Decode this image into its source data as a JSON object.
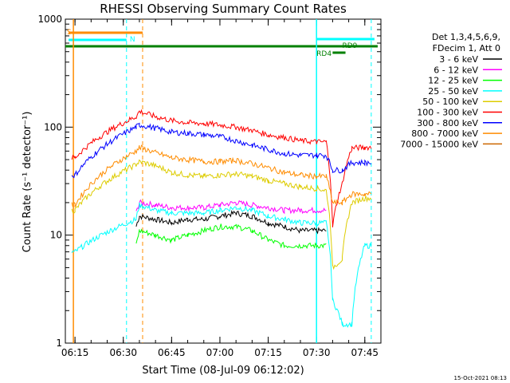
{
  "chart_data": {
    "type": "line",
    "title": "RHESSI Observing Summary Count Rates",
    "xlabel": "Start Time (08-Jul-09 06:12:02)",
    "ylabel": "Count Rate (s⁻¹ detector⁻¹)",
    "y_scale": "log",
    "ylim": [
      1,
      1000
    ],
    "xlim": [
      "06:12",
      "07:50"
    ],
    "x_ticks": [
      "06:15",
      "06:30",
      "06:45",
      "07:00",
      "07:15",
      "07:30",
      "07:45"
    ],
    "y_ticks": [
      "1",
      "10",
      "100",
      "1000"
    ],
    "legend": {
      "placement": "right",
      "header": [
        "Det 1,3,4,5,6,9,",
        "FDecim 1, Att 0"
      ]
    },
    "footer": "15-Oct-2021 08:13",
    "x_keys": [
      "06:14",
      "06:15",
      "06:34",
      "06:35",
      "06:40",
      "06:45",
      "06:50",
      "06:55",
      "07:00",
      "07:05",
      "07:10",
      "07:15",
      "07:20",
      "07:25",
      "07:30",
      "07:33",
      "07:35",
      "07:38",
      "07:41",
      "07:45",
      "07:47"
    ],
    "series": [
      {
        "name": "3 - 6 keV",
        "color": "#000000",
        "values": [
          null,
          null,
          12,
          15,
          14,
          13,
          14,
          14,
          15,
          16,
          15,
          13,
          12,
          11,
          11,
          11,
          null,
          null,
          null,
          null,
          null
        ]
      },
      {
        "name": "6 - 12 keV",
        "color": "#ff00ff",
        "values": [
          null,
          null,
          16,
          20,
          19,
          18,
          18,
          18,
          19,
          20,
          19,
          18,
          17,
          17,
          17,
          17,
          null,
          null,
          null,
          null,
          null
        ]
      },
      {
        "name": "12 - 25 keV",
        "color": "#00ff00",
        "values": [
          null,
          null,
          8,
          11,
          10,
          9,
          10,
          11,
          12,
          12,
          11,
          9,
          8,
          8,
          8,
          8,
          null,
          null,
          null,
          null,
          null
        ]
      },
      {
        "name": "25 - 50 keV",
        "color": "#00ffff",
        "values": [
          7,
          7,
          14,
          19,
          17,
          16,
          16,
          16,
          17,
          18,
          17,
          15,
          14,
          13,
          13,
          13,
          2.5,
          1.5,
          1.5,
          8,
          8
        ]
      },
      {
        "name": "50 - 100 keV",
        "color": "#ddcc00",
        "values": [
          17,
          17,
          45,
          48,
          44,
          38,
          36,
          35,
          36,
          37,
          35,
          32,
          30,
          28,
          27,
          26,
          5,
          6,
          20,
          22,
          22
        ]
      },
      {
        "name": "100 - 300 keV",
        "color": "#ff0000",
        "values": [
          52,
          52,
          125,
          140,
          125,
          115,
          110,
          108,
          105,
          100,
          93,
          85,
          80,
          75,
          73,
          73,
          12,
          30,
          64,
          65,
          65
        ]
      },
      {
        "name": "300 - 800 keV",
        "color": "#0000ff",
        "values": [
          36,
          36,
          100,
          105,
          98,
          90,
          88,
          85,
          82,
          75,
          68,
          62,
          57,
          55,
          55,
          55,
          40,
          40,
          47,
          47,
          47
        ]
      },
      {
        "name": "800 - 7000 keV",
        "color": "#ff8c00",
        "values": [
          19,
          19,
          60,
          65,
          58,
          52,
          50,
          48,
          48,
          49,
          46,
          42,
          38,
          36,
          35,
          35,
          20,
          20,
          24,
          24,
          24
        ]
      },
      {
        "name": "7000 - 15000 keV",
        "color": "#cc6600",
        "values": [
          null,
          null,
          null,
          null,
          null,
          null,
          null,
          null,
          null,
          null,
          null,
          null,
          null,
          null,
          null,
          null,
          null,
          null,
          null,
          null,
          null
        ]
      }
    ],
    "annotations": [
      {
        "text": "S",
        "color": "#ff8c00"
      },
      {
        "text": "N",
        "color": "#00ffff"
      },
      {
        "text": "RD4",
        "color": "#008000"
      },
      {
        "text": "RD9",
        "color": "#008000"
      }
    ]
  }
}
